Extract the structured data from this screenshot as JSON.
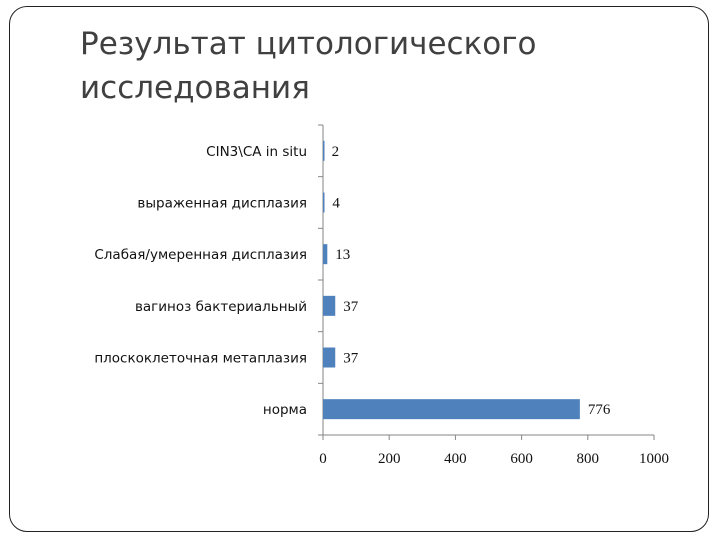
{
  "slide": {
    "title": "Результат цитологического исследования"
  },
  "chart_data": {
    "type": "bar",
    "orientation": "horizontal",
    "categories": [
      "CIN3\\CA in situ",
      "выраженная дисплазия",
      "Слабая/умеренная дисплазия",
      "вагиноз бактериальный",
      "плоскоклеточная метаплазия",
      "норма"
    ],
    "values": [
      2,
      4,
      13,
      37,
      37,
      776
    ],
    "data_labels": [
      "2",
      "4",
      "13",
      "37",
      "37",
      "776"
    ],
    "xlim": [
      0,
      1000
    ],
    "x_ticks": [
      0,
      200,
      400,
      600,
      800,
      1000
    ],
    "x_tick_labels": [
      "0",
      "200",
      "400",
      "600",
      "800",
      "1000"
    ],
    "grid": false,
    "legend": "none",
    "bar_color": "#4f81bd"
  }
}
